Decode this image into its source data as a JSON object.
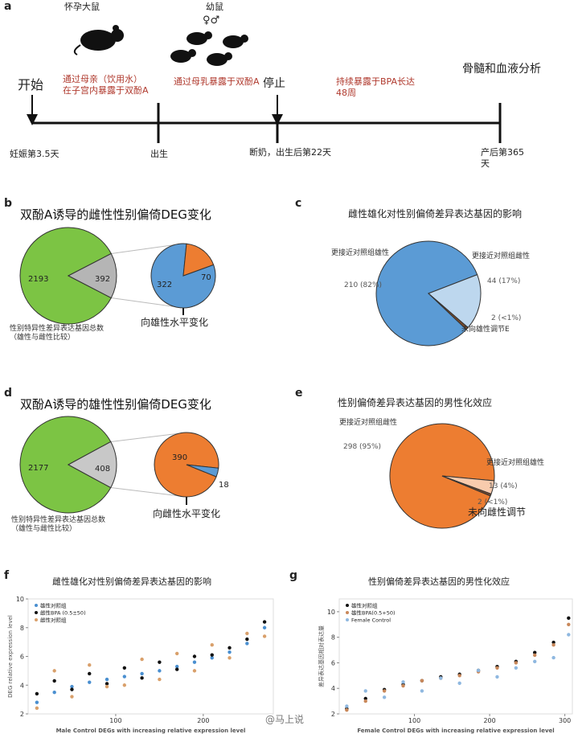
{
  "panel_a": {
    "label": "a",
    "pregnant_rat": "怀孕大鼠",
    "pups": "幼鼠",
    "sex_symbols": "♀♂",
    "start": "开始",
    "stop": "停止",
    "final": "骨髓和血液分析",
    "phase1": "通过母亲（饮用水）在子宫内暴露于双酚A",
    "phase2": "通过母乳暴露于双酚A",
    "phase3": "持续暴露于BPA长达48周",
    "milestones": [
      "妊娠第3.5天",
      "出生",
      "断奶，出生后第22天",
      "产后第365天"
    ]
  },
  "panel_b": {
    "label": "b",
    "title": "双酚A诱导的雌性性别偏倚DEG变化",
    "main_pie": {
      "values": [
        2193,
        392
      ],
      "colors": [
        "#7cc444",
        "#b5b5b5"
      ]
    },
    "sub_pie": {
      "values": [
        322,
        70
      ],
      "colors": [
        "#5b9bd5",
        "#ed7d31"
      ]
    },
    "caption": "性别特异性差异表达基因总数（雄性与雌性比较）",
    "arrow_label": "向雄性水平变化"
  },
  "panel_c": {
    "label": "c",
    "title": "雌性雄化对性别偏倚差异表达基因的影响",
    "names": [
      "更接近对照组雄性",
      "更接近对照组雌性",
      "未向雄性调节E"
    ],
    "values": [
      210,
      44,
      2
    ],
    "value_labels": [
      "210 (82%)",
      "44 (17%)",
      "2 (<1%)"
    ],
    "colors": [
      "#5b9bd5",
      "#bdd7ee",
      "#7a4a2a"
    ]
  },
  "panel_d": {
    "label": "d",
    "title": "双酚A诱导的雄性性别偏倚DEG变化",
    "main_pie": {
      "values": [
        2177,
        408
      ],
      "colors": [
        "#7cc444",
        "#c8c8c8"
      ]
    },
    "sub_pie": {
      "values": [
        390,
        18
      ],
      "colors": [
        "#ed7d31",
        "#5b9bd5"
      ]
    },
    "caption": "性别特异性差异表达基因总数（雄性与雌性比较）",
    "arrow_label": "向雌性水平变化"
  },
  "panel_e": {
    "label": "e",
    "title": "性别偏倚差异表达基因的男性化效应",
    "names": [
      "更接近对照组雌性",
      "更接近对照组雄性",
      "未向雌性调节"
    ],
    "values": [
      298,
      13,
      2
    ],
    "value_labels": [
      "298 (95%)",
      "13 (4%)",
      "2 (<1%)"
    ],
    "colors": [
      "#ed7d31",
      "#f8cbad",
      "#7a4a2a"
    ]
  },
  "chart_data": [
    {
      "type": "scatter",
      "label": "f",
      "title": "雌性雄化对性别偏倚差异表达基因的影响",
      "x_label": "Male Control DEGs with increasing relative expression level",
      "y_label": "DEG relative expression level",
      "xlim": [
        0,
        280
      ],
      "ylim": [
        2,
        10
      ],
      "xticks": [
        100,
        200
      ],
      "yticks": [
        2,
        4,
        6,
        8,
        10
      ],
      "x": [
        10,
        30,
        50,
        70,
        90,
        110,
        130,
        150,
        170,
        190,
        210,
        230,
        250,
        270
      ],
      "series": [
        {
          "name": "雄性对照组",
          "color": "#4a8fd0",
          "values": [
            2.8,
            3.5,
            3.9,
            4.2,
            4.4,
            4.6,
            4.8,
            5.0,
            5.3,
            5.6,
            5.9,
            6.3,
            6.9,
            8.0
          ]
        },
        {
          "name": "雌性BPA (0.5±50)",
          "color": "#111111",
          "values": [
            3.4,
            4.3,
            3.7,
            4.8,
            4.1,
            5.2,
            4.5,
            5.6,
            5.1,
            6.0,
            6.1,
            6.6,
            7.2,
            8.4
          ]
        },
        {
          "name": "雌性对照组",
          "color": "#d9a06b",
          "values": [
            2.4,
            5.0,
            3.2,
            5.4,
            3.9,
            4.0,
            5.8,
            4.4,
            6.2,
            5.0,
            6.8,
            5.9,
            7.6,
            7.4
          ]
        }
      ]
    },
    {
      "type": "scatter",
      "label": "g",
      "title": "性别偏倚差异表达基因的男性化效应",
      "x_label": "Female Control DEGs with increasing relative expression level",
      "y_label": "差异表达基因相对表达量",
      "xlim": [
        0,
        310
      ],
      "ylim": [
        2,
        11
      ],
      "xticks": [
        100,
        200,
        300
      ],
      "yticks": [
        2,
        4,
        6,
        8,
        10
      ],
      "x": [
        10,
        35,
        60,
        85,
        110,
        135,
        160,
        185,
        210,
        235,
        260,
        285,
        305
      ],
      "series": [
        {
          "name": "雄性对照组",
          "color": "#111111",
          "values": [
            2.4,
            3.2,
            3.9,
            4.3,
            4.6,
            4.9,
            5.1,
            5.4,
            5.7,
            6.1,
            6.8,
            7.6,
            9.5
          ]
        },
        {
          "name": "雄性BPA(0.5+50)",
          "color": "#c9885a",
          "values": [
            2.3,
            3.0,
            3.8,
            4.2,
            4.6,
            4.8,
            5.0,
            5.3,
            5.6,
            6.0,
            6.6,
            7.4,
            9.0
          ]
        },
        {
          "name": "Female Control",
          "color": "#8fb8e0",
          "values": [
            2.6,
            3.8,
            3.3,
            4.5,
            3.8,
            4.8,
            4.4,
            5.4,
            4.9,
            5.6,
            6.1,
            6.4,
            8.2
          ]
        }
      ]
    }
  ],
  "watermark": "@马上说"
}
